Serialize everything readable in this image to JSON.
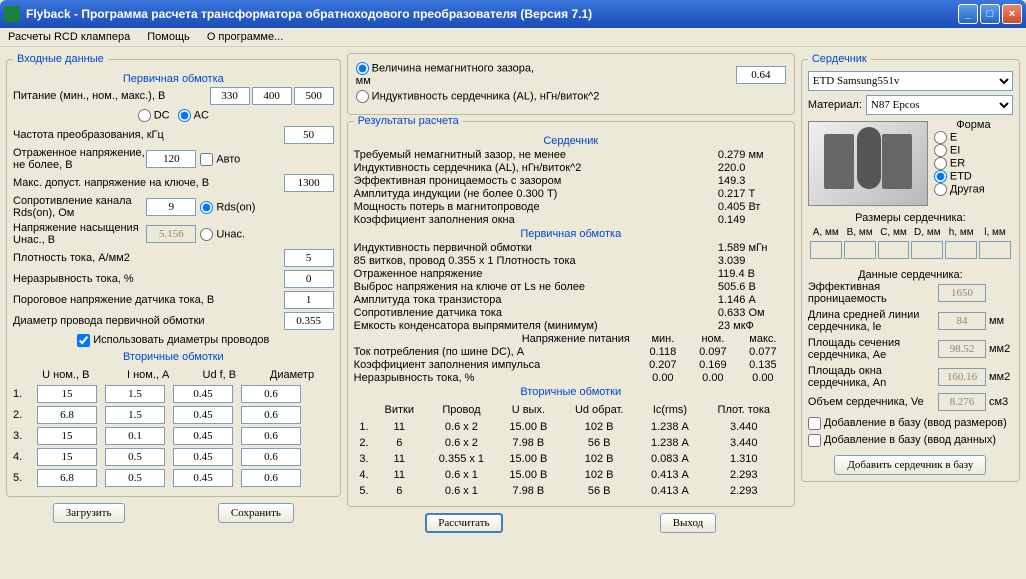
{
  "window": {
    "title": "Flyback - Программа расчета трансформатора обратноходового преобразователя (Версия 7.1)"
  },
  "menu": {
    "item1": "Расчеты RCD клампера",
    "item2": "Помощь",
    "item3": "О программе..."
  },
  "input": {
    "title": "Входные данные",
    "primary_title": "Первичная обмотка",
    "supply_lbl": "Питание (мин., ном., макс.), В",
    "supply_min": "330",
    "supply_nom": "400",
    "supply_max": "500",
    "dc_lbl": "DC",
    "ac_lbl": "AC",
    "freq_lbl": "Частота преобразования, кГц",
    "freq": "50",
    "refl_lbl": "Отраженное напряжение, не более, В",
    "refl": "120",
    "auto_lbl": "Авто",
    "maxsw_lbl": "Макс. допуст. напряжение на ключе, В",
    "maxsw": "1300",
    "rds_lbl": "Сопротивление канала Rds(on), Ом",
    "rds": "9",
    "rds_radio": "Rds(on)",
    "unas_lbl": "Напряжение насыщения Uнас., В",
    "unas": "5.156",
    "unas_radio": "Uнас.",
    "curdens_lbl": "Плотность тока, А/мм2",
    "curdens": "5",
    "ripple_lbl": "Неразрывность тока, %",
    "ripple": "0",
    "thresh_lbl": "Пороговое напряжение датчика тока, В",
    "thresh": "1",
    "wiredia_lbl": "Диаметр провода первичной обмотки",
    "wiredia": "0.355",
    "usedia_lbl": "Использовать диаметры проводов",
    "secondary_title": "Вторичные обмотки",
    "sec_hdr1": "U ном., В",
    "sec_hdr2": "I ном., А",
    "sec_hdr3": "Ud f, B",
    "sec_hdr4": "Диаметр",
    "sec": [
      {
        "n": "1.",
        "u": "15",
        "i": "1.5",
        "ud": "0.45",
        "d": "0.6"
      },
      {
        "n": "2.",
        "u": "6.8",
        "i": "1.5",
        "ud": "0.45",
        "d": "0.6"
      },
      {
        "n": "3.",
        "u": "15",
        "i": "0.1",
        "ud": "0.45",
        "d": "0.6"
      },
      {
        "n": "4.",
        "u": "15",
        "i": "0.5",
        "ud": "0.45",
        "d": "0.6"
      },
      {
        "n": "5.",
        "u": "6.8",
        "i": "0.5",
        "ud": "0.45",
        "d": "0.6"
      }
    ],
    "load_btn": "Загрузить",
    "save_btn": "Сохранить"
  },
  "gap": {
    "opt1": "Величина немагнитного зазора, мм",
    "opt2": "Индуктивность сердечника (AL), нГн/виток^2",
    "value": "0.64"
  },
  "results": {
    "title": "Результаты расчета",
    "core_title": "Сердечник",
    "r1k": "Требуемый немагнитный зазор, не менее",
    "r1v": "0.279 мм",
    "r2k": "Индуктивность сердечника (AL), нГн/виток^2",
    "r2v": "220.0",
    "r3k": "Эффективная проницаемость с зазором",
    "r3v": "149.3",
    "r4k": "Амплитуда индукции          (не более 0.300 Т)",
    "r4v": "0.217 Т",
    "r5k": "Мощность потерь в магнитопроводе",
    "r5v": "0.405 Вт",
    "r6k": "Коэффициент заполнения окна",
    "r6v": "0.149",
    "prim_title": "Первичная обмотка",
    "p1k": "Индуктивность первичной обмотки",
    "p1v": "1.589 мГн",
    "p2k": "  85 витков, провод 0.355 x 1        Плотность тока",
    "p2v": "3.039",
    "p3k": "Отраженное напряжение",
    "p3v": "119.4 В",
    "p4k": "Выброс напряжения на ключе от Ls не более",
    "p4v": "505.6 В",
    "p5k": "Амплитуда тока транзистора",
    "p5v": "1.146 А",
    "p6k": "Сопротивление датчика тока",
    "p6v": "0.633 Ом",
    "p7k": "Емкость конденсатора выпрямителя (минимум)",
    "p7v": "23 мкФ",
    "t_hdr": "Напряжение питания",
    "t_min": "мин.",
    "t_nom": "ном.",
    "t_max": "макс.",
    "t1k": "Ток потребления (по шине DC), А",
    "t1a": "0.118",
    "t1b": "0.097",
    "t1c": "0.077",
    "t2k": "Коэффициент заполнения импульса",
    "t2a": "0.207",
    "t2b": "0.169",
    "t2c": "0.135",
    "t3k": "Неразрывность тока, %",
    "t3a": "0.00",
    "t3b": "0.00",
    "t3c": "0.00",
    "sec_title": "Вторичные обмотки",
    "sh": [
      "Витки",
      "Провод",
      "U вых.",
      "Ud обрат.",
      "Ic(rms)",
      "Плот. тока"
    ],
    "srows": [
      [
        "1.",
        "11",
        "0.6 x 2",
        "15.00 В",
        "102 В",
        "1.238 А",
        "3.440"
      ],
      [
        "2.",
        "6",
        "0.6 x 2",
        "7.98 В",
        "56 В",
        "1.238 А",
        "3.440"
      ],
      [
        "3.",
        "11",
        "0.355 x 1",
        "15.00 В",
        "102 В",
        "0.083 А",
        "1.310"
      ],
      [
        "4.",
        "11",
        "0.6 x 1",
        "15.00 В",
        "102 В",
        "0.413 А",
        "2.293"
      ],
      [
        "5.",
        "6",
        "0.6 x 1",
        "7.98 В",
        "56 В",
        "0.413 А",
        "2.293"
      ]
    ],
    "calc_btn": "Рассчитать",
    "exit_btn": "Выход"
  },
  "core": {
    "title": "Сердечник",
    "name": "ETD Samsung551v",
    "mat_lbl": "Материал:",
    "material": "N87 Epcos",
    "shape_lbl": "Форма",
    "shapes": [
      "E",
      "EI",
      "ER",
      "ETD",
      "Другая"
    ],
    "dims_title": "Размеры сердечника:",
    "dims_hdr": [
      "A, мм",
      "B, мм",
      "C, мм",
      "D, мм",
      "h, мм",
      "l, мм"
    ],
    "data_title": "Данные сердечника:",
    "d1k": "Эффективная проницаемость",
    "d1v": "1650",
    "d2k": "Длина средней линии сердечника, le",
    "d2v": "84",
    "d2u": "мм",
    "d3k": "Площадь сечения сердечника, Ае",
    "d3v": "98.52",
    "d3u": "мм2",
    "d4k": "Площадь окна сердечника, Аn",
    "d4v": "160.16",
    "d4u": "мм2",
    "d5k": "Объем сердечника, Ve",
    "d5v": "8.276",
    "d5u": "см3",
    "chk1": "Добавление в базу (ввод размеров)",
    "chk2": "Добавление в базу (ввод данных)",
    "add_btn": "Добавить сердечник в базу"
  }
}
